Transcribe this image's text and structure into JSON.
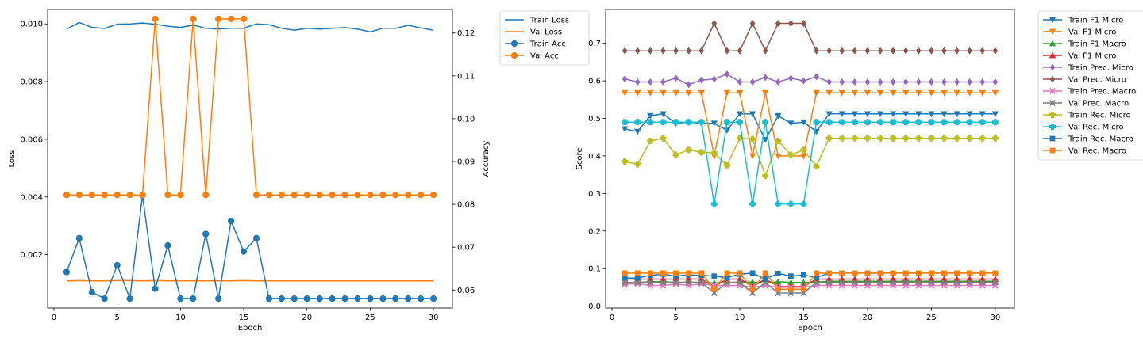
{
  "chart_data": [
    {
      "type": "line",
      "xlabel": "Epoch",
      "ylabel": "Loss",
      "y2label": "Accuracy",
      "xlim": [
        -0.5,
        31.5
      ],
      "ylim": [
        0.00015,
        0.0105
      ],
      "y2lim": [
        0.0558,
        0.1255
      ],
      "xticks": [
        0,
        5,
        10,
        15,
        20,
        25,
        30
      ],
      "yticks": [
        0.002,
        0.004,
        0.006,
        0.008,
        0.01
      ],
      "ytick_labels": [
        "0.002",
        "0.004",
        "0.006",
        "0.008",
        "0.010"
      ],
      "y2ticks": [
        0.06,
        0.07,
        0.08,
        0.09,
        0.1,
        0.11,
        0.12
      ],
      "y2tick_labels": [
        "0.06",
        "0.07",
        "0.08",
        "0.09",
        "0.10",
        "0.11",
        "0.12"
      ],
      "legend_position": "outside right, top",
      "grid": false,
      "x": [
        1,
        2,
        3,
        4,
        5,
        6,
        7,
        8,
        9,
        10,
        11,
        12,
        13,
        14,
        15,
        16,
        17,
        18,
        19,
        20,
        21,
        22,
        23,
        24,
        25,
        26,
        27,
        28,
        29,
        30
      ],
      "series": [
        {
          "name": "Train Loss",
          "axis": "left",
          "color": "#1f77b4",
          "marker": "none",
          "values": [
            0.00982,
            0.01005,
            0.00988,
            0.00984,
            0.00999,
            0.01,
            0.01003,
            0.00999,
            0.00992,
            0.00988,
            0.00996,
            0.00985,
            0.00982,
            0.00985,
            0.00985,
            0.01,
            0.00997,
            0.00985,
            0.00978,
            0.00985,
            0.00982,
            0.00985,
            0.00987,
            0.00982,
            0.00972,
            0.00985,
            0.00985,
            0.00995,
            0.00986,
            0.00978
          ]
        },
        {
          "name": "Val Loss",
          "axis": "left",
          "color": "#ff7f0e",
          "marker": "none",
          "values": [
            0.00109,
            0.0011,
            0.00109,
            0.00109,
            0.0011,
            0.0011,
            0.00109,
            0.0011,
            0.00109,
            0.00109,
            0.00109,
            0.00109,
            0.00109,
            0.00109,
            0.0011,
            0.00109,
            0.00109,
            0.00109,
            0.00109,
            0.00109,
            0.00109,
            0.00109,
            0.00109,
            0.00109,
            0.00109,
            0.00109,
            0.00109,
            0.00109,
            0.00109,
            0.00109
          ]
        },
        {
          "name": "Train Acc",
          "axis": "right",
          "color": "#1f77b4",
          "marker": "o",
          "values": [
            0.0642,
            0.0721,
            0.0595,
            0.058,
            0.0658,
            0.058,
            0.0821,
            0.0603,
            0.0704,
            0.058,
            0.058,
            0.0731,
            0.058,
            0.0761,
            0.069,
            0.0721,
            0.058,
            0.058,
            0.058,
            0.058,
            0.058,
            0.058,
            0.058,
            0.058,
            0.058,
            0.058,
            0.058,
            0.058,
            0.058,
            0.058
          ]
        },
        {
          "name": "Val Acc",
          "axis": "right",
          "color": "#ff7f0e",
          "marker": "o",
          "values": [
            0.0822,
            0.0822,
            0.0822,
            0.0822,
            0.0822,
            0.0822,
            0.0822,
            0.1233,
            0.0822,
            0.0822,
            0.1233,
            0.0822,
            0.1233,
            0.1233,
            0.1233,
            0.0822,
            0.0822,
            0.0822,
            0.0822,
            0.0822,
            0.0822,
            0.0822,
            0.0822,
            0.0822,
            0.0822,
            0.0822,
            0.0822,
            0.0822,
            0.0822,
            0.0822
          ]
        }
      ]
    },
    {
      "type": "line",
      "xlabel": "Epoch",
      "ylabel": "Score",
      "xlim": [
        -0.5,
        31.5
      ],
      "ylim": [
        -0.005,
        0.79
      ],
      "xticks": [
        0,
        5,
        10,
        15,
        20,
        25,
        30
      ],
      "yticks": [
        0.0,
        0.1,
        0.2,
        0.3,
        0.4,
        0.5,
        0.6,
        0.7
      ],
      "ytick_labels": [
        "0.0",
        "0.1",
        "0.2",
        "0.3",
        "0.4",
        "0.5",
        "0.6",
        "0.7"
      ],
      "legend_position": "outside right, top",
      "grid": false,
      "x": [
        1,
        2,
        3,
        4,
        5,
        6,
        7,
        8,
        9,
        10,
        11,
        12,
        13,
        14,
        15,
        16,
        17,
        18,
        19,
        20,
        21,
        22,
        23,
        24,
        25,
        26,
        27,
        28,
        29,
        30
      ],
      "series": [
        {
          "name": "Train F1 Micro",
          "color": "#1f77b4",
          "marker": "v",
          "values": [
            0.472,
            0.465,
            0.507,
            0.512,
            0.487,
            0.49,
            0.487,
            0.487,
            0.468,
            0.512,
            0.512,
            0.443,
            0.507,
            0.487,
            0.49,
            0.465,
            0.512,
            0.512,
            0.512,
            0.512,
            0.512,
            0.512,
            0.512,
            0.512,
            0.512,
            0.512,
            0.512,
            0.512,
            0.512,
            0.512
          ]
        },
        {
          "name": "Val F1 Micro",
          "color": "#ff7f0e",
          "marker": "v",
          "values": [
            0.568,
            0.568,
            0.568,
            0.568,
            0.568,
            0.568,
            0.568,
            0.4,
            0.568,
            0.568,
            0.4,
            0.568,
            0.4,
            0.4,
            0.4,
            0.568,
            0.568,
            0.568,
            0.568,
            0.568,
            0.568,
            0.568,
            0.568,
            0.568,
            0.568,
            0.568,
            0.568,
            0.568,
            0.568,
            0.568
          ]
        },
        {
          "name": "Train F1 Macro",
          "color": "#2ca02c",
          "marker": "^",
          "values": [
            0.063,
            0.063,
            0.065,
            0.065,
            0.063,
            0.064,
            0.063,
            0.062,
            0.063,
            0.064,
            0.064,
            0.062,
            0.065,
            0.063,
            0.063,
            0.064,
            0.066,
            0.066,
            0.066,
            0.066,
            0.066,
            0.066,
            0.066,
            0.066,
            0.066,
            0.066,
            0.066,
            0.066,
            0.066,
            0.066
          ]
        },
        {
          "name": "Val F1 Micro",
          "color": "#d62728",
          "marker": "^",
          "values": [
            0.072,
            0.072,
            0.072,
            0.072,
            0.072,
            0.072,
            0.072,
            0.052,
            0.072,
            0.072,
            0.052,
            0.072,
            0.052,
            0.052,
            0.052,
            0.072,
            0.072,
            0.072,
            0.072,
            0.072,
            0.072,
            0.072,
            0.072,
            0.072,
            0.072,
            0.072,
            0.072,
            0.072,
            0.072,
            0.072
          ]
        },
        {
          "name": "Train Prec. Micro",
          "color": "#9467bd",
          "marker": "D",
          "values": [
            0.605,
            0.597,
            0.597,
            0.597,
            0.607,
            0.59,
            0.602,
            0.605,
            0.618,
            0.597,
            0.597,
            0.609,
            0.597,
            0.607,
            0.6,
            0.611,
            0.597,
            0.597,
            0.597,
            0.597,
            0.597,
            0.597,
            0.597,
            0.597,
            0.597,
            0.597,
            0.597,
            0.597,
            0.597,
            0.597
          ]
        },
        {
          "name": "Val Prec. Micro",
          "color": "#8c564b",
          "marker": "D",
          "values": [
            0.68,
            0.68,
            0.68,
            0.68,
            0.68,
            0.68,
            0.68,
            0.753,
            0.68,
            0.68,
            0.753,
            0.68,
            0.753,
            0.753,
            0.753,
            0.68,
            0.68,
            0.68,
            0.68,
            0.68,
            0.68,
            0.68,
            0.68,
            0.68,
            0.68,
            0.68,
            0.68,
            0.68,
            0.68,
            0.68
          ]
        },
        {
          "name": "Train Prec. Macro",
          "color": "#e377c2",
          "marker": "x",
          "values": [
            0.058,
            0.06,
            0.055,
            0.055,
            0.059,
            0.055,
            0.06,
            0.055,
            0.055,
            0.055,
            0.05,
            0.055,
            0.05,
            0.05,
            0.05,
            0.055,
            0.055,
            0.055,
            0.055,
            0.055,
            0.055,
            0.055,
            0.055,
            0.055,
            0.055,
            0.055,
            0.055,
            0.055,
            0.055,
            0.055
          ]
        },
        {
          "name": "Val Prec. Macro",
          "color": "#7f7f7f",
          "marker": "x",
          "values": [
            0.063,
            0.063,
            0.063,
            0.063,
            0.063,
            0.063,
            0.063,
            0.035,
            0.063,
            0.063,
            0.035,
            0.063,
            0.035,
            0.035,
            0.035,
            0.063,
            0.063,
            0.063,
            0.063,
            0.063,
            0.063,
            0.063,
            0.063,
            0.063,
            0.063,
            0.063,
            0.063,
            0.063,
            0.063,
            0.063
          ]
        },
        {
          "name": "Train Rec. Micro",
          "color": "#bcbd22",
          "marker": "P",
          "values": [
            0.385,
            0.378,
            0.44,
            0.447,
            0.403,
            0.416,
            0.41,
            0.408,
            0.375,
            0.447,
            0.445,
            0.347,
            0.44,
            0.403,
            0.416,
            0.372,
            0.447,
            0.447,
            0.447,
            0.447,
            0.447,
            0.447,
            0.447,
            0.447,
            0.447,
            0.447,
            0.447,
            0.447,
            0.447,
            0.447
          ]
        },
        {
          "name": "Val Rec. Micro",
          "color": "#17becf",
          "marker": "P",
          "values": [
            0.49,
            0.49,
            0.49,
            0.49,
            0.49,
            0.49,
            0.49,
            0.272,
            0.49,
            0.49,
            0.272,
            0.49,
            0.272,
            0.272,
            0.272,
            0.49,
            0.49,
            0.49,
            0.49,
            0.49,
            0.49,
            0.49,
            0.49,
            0.49,
            0.49,
            0.49,
            0.49,
            0.49,
            0.49,
            0.49
          ]
        },
        {
          "name": "Train Rec. Macro",
          "color": "#1f77b4",
          "marker": "s",
          "values": [
            0.075,
            0.075,
            0.082,
            0.085,
            0.08,
            0.083,
            0.082,
            0.08,
            0.076,
            0.085,
            0.088,
            0.072,
            0.087,
            0.08,
            0.083,
            0.076,
            0.088,
            0.088,
            0.088,
            0.088,
            0.088,
            0.088,
            0.088,
            0.088,
            0.088,
            0.088,
            0.088,
            0.088,
            0.088,
            0.088
          ]
        },
        {
          "name": "Val Rec. Macro",
          "color": "#ff7f0e",
          "marker": "s",
          "values": [
            0.088,
            0.088,
            0.088,
            0.088,
            0.088,
            0.088,
            0.088,
            0.045,
            0.088,
            0.088,
            0.045,
            0.088,
            0.045,
            0.045,
            0.045,
            0.088,
            0.088,
            0.088,
            0.088,
            0.088,
            0.088,
            0.088,
            0.088,
            0.088,
            0.088,
            0.088,
            0.088,
            0.088,
            0.088,
            0.088
          ]
        }
      ]
    }
  ]
}
